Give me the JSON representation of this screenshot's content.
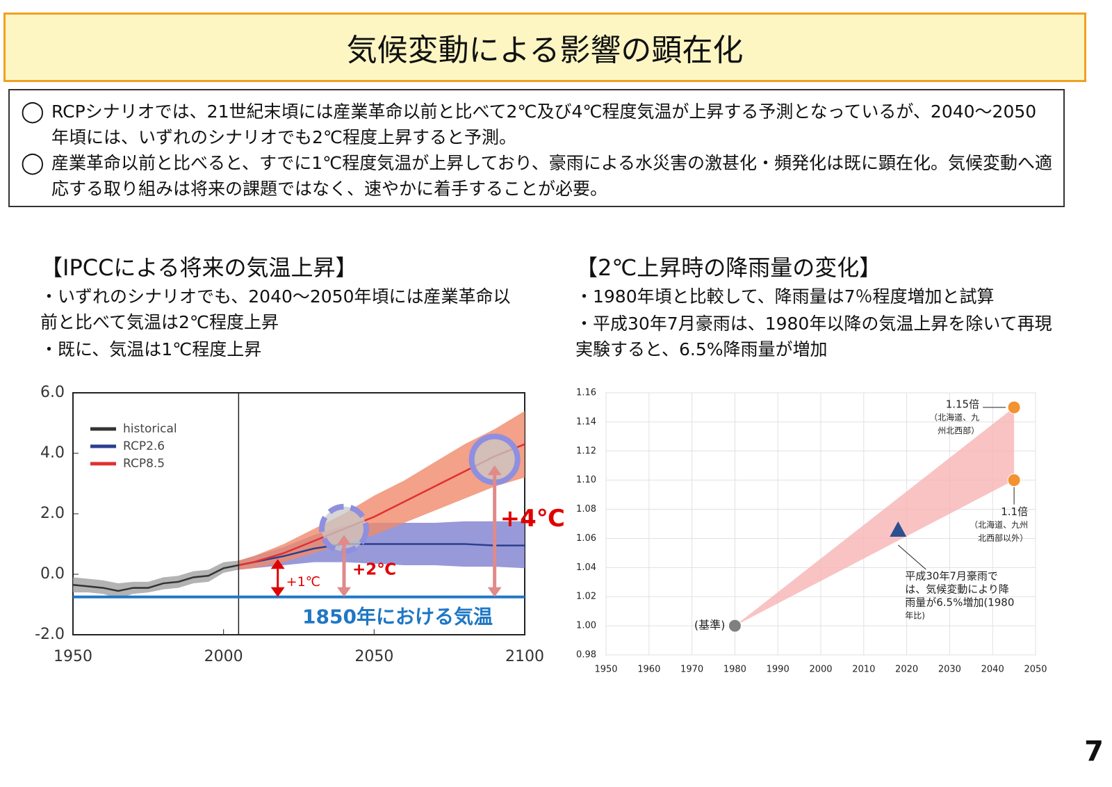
{
  "title": "気候変動による影響の顕在化",
  "bullets": [
    "RCPシナリオでは、21世紀末頃には産業革命以前と比べて2℃及び4℃程度気温が上昇する予測となっているが、2040～2050年頃には、いずれのシナリオでも2℃程度上昇すると予測。",
    "産業革命以前と比べると、すでに1℃程度気温が上昇しており、豪雨による水災害の激甚化・頻発化は既に顕在化。気候変動へ適応する取り組みは将来の課題ではなく、速やかに着手することが必要。"
  ],
  "panels": [
    {
      "heading": "【IPCCによる将来の気温上昇】",
      "notes": [
        "・いずれのシナリオでも、2040～2050年頃には産業革命以前と比べて気温は2℃程度上昇",
        "・既に、気温は1℃程度上昇"
      ]
    },
    {
      "heading": "【2℃上昇時の降雨量の変化】",
      "notes": [
        "・1980年頃と比較して、降雨量は7％程度増加と試算",
        "・平成30年7月豪雨は、1980年以降の気温上昇を除いて再現実験すると、6.5%降雨量が増加"
      ]
    }
  ],
  "page_number": 7,
  "chart_data": [
    {
      "type": "line",
      "xlim": [
        1950,
        2100
      ],
      "xticks": [
        1950,
        2000,
        2050,
        2100
      ],
      "ylim": [
        -2,
        6
      ],
      "yticks": [
        {
          "value": -2,
          "label": "-2.0"
        },
        {
          "value": 0,
          "label": "0.0"
        },
        {
          "value": 2,
          "label": "2.0"
        },
        {
          "value": 4,
          "label": "4.0"
        },
        {
          "value": 6,
          "label": "6.0"
        }
      ],
      "vline": 2005,
      "series": [
        {
          "name": "historical",
          "color": "#333333",
          "band_color": "#a0a0a0",
          "x": [
            1950,
            1955,
            1960,
            1965,
            1970,
            1975,
            1980,
            1985,
            1990,
            1995,
            2000,
            2005
          ],
          "values": [
            -0.35,
            -0.4,
            -0.45,
            -0.55,
            -0.45,
            -0.45,
            -0.3,
            -0.25,
            -0.1,
            -0.05,
            0.2,
            0.3
          ],
          "lower": [
            -0.6,
            -0.6,
            -0.65,
            -0.8,
            -0.65,
            -0.6,
            -0.5,
            -0.45,
            -0.3,
            -0.25,
            0.05,
            0.15
          ],
          "upper": [
            -0.1,
            -0.15,
            -0.2,
            -0.3,
            -0.25,
            -0.25,
            -0.1,
            -0.05,
            0.1,
            0.15,
            0.4,
            0.45
          ]
        },
        {
          "name": "RCP2.6",
          "color": "#2b3f8f",
          "band_color": "#7e7fd0",
          "x": [
            2005,
            2010,
            2020,
            2030,
            2040,
            2050,
            2060,
            2070,
            2080,
            2090,
            2100
          ],
          "values": [
            0.3,
            0.4,
            0.6,
            0.85,
            1.0,
            1.0,
            1.0,
            1.0,
            1.0,
            0.95,
            0.95
          ],
          "lower": [
            0.15,
            0.2,
            0.3,
            0.4,
            0.4,
            0.35,
            0.3,
            0.3,
            0.25,
            0.25,
            0.2
          ],
          "upper": [
            0.45,
            0.6,
            0.9,
            1.3,
            1.6,
            1.7,
            1.7,
            1.7,
            1.75,
            1.75,
            1.75
          ]
        },
        {
          "name": "RCP8.5",
          "color": "#e03030",
          "band_color": "#f08a6a",
          "x": [
            2005,
            2010,
            2020,
            2030,
            2040,
            2050,
            2060,
            2070,
            2080,
            2090,
            2100
          ],
          "values": [
            0.3,
            0.4,
            0.7,
            1.1,
            1.5,
            1.9,
            2.4,
            2.9,
            3.4,
            3.9,
            4.3
          ],
          "lower": [
            0.15,
            0.2,
            0.4,
            0.7,
            1.0,
            1.3,
            1.7,
            2.1,
            2.5,
            2.9,
            3.2
          ],
          "upper": [
            0.45,
            0.6,
            1.0,
            1.5,
            2.0,
            2.6,
            3.1,
            3.7,
            4.3,
            4.8,
            5.4
          ]
        }
      ],
      "reference_line": {
        "label": "1850年における気温",
        "value": -0.75,
        "color": "#1f77c4"
      },
      "highlights": [
        {
          "x": 2040,
          "y": 1.5,
          "dashed": true
        },
        {
          "x": 2090,
          "y": 3.8,
          "dashed": false
        }
      ],
      "annotations": [
        {
          "text": "+1℃",
          "x": 2018,
          "from": -0.75,
          "to": 0.5,
          "color": "#e00000",
          "label_color": "#e00000"
        },
        {
          "text": "+2℃",
          "x": 2040,
          "from": -0.75,
          "to": 1.3,
          "color": "#e08a8a",
          "label_color": "#e00000"
        },
        {
          "text": "+4℃",
          "x": 2090,
          "from": -0.75,
          "to": 3.6,
          "color": "#e08a8a",
          "label_color": "#e00000"
        }
      ]
    },
    {
      "type": "scatter",
      "xlim": [
        1950,
        2050
      ],
      "xticks": [
        1950,
        1960,
        1970,
        1980,
        1990,
        2000,
        2010,
        2020,
        2030,
        2040,
        2050
      ],
      "ylim": [
        0.98,
        1.16
      ],
      "yticks": [
        0.98,
        {
          "value": 1,
          "label": "1.00"
        },
        1.02,
        1.04,
        1.06,
        1.08,
        {
          "value": 1.1,
          "label": "1.10"
        },
        1.12,
        1.14,
        1.16
      ],
      "grid": true,
      "range_area": {
        "color": "#f8b4b4",
        "x": [
          1980,
          2045,
          2045
        ],
        "y": [
          1,
          1.15,
          1.1
        ]
      },
      "points": [
        {
          "x": 1980,
          "y": 1,
          "color": "#808080",
          "marker": "circle",
          "label": [
            "(基準)"
          ]
        },
        {
          "x": 2018,
          "y": 1.065,
          "color": "#2b4f8f",
          "marker": "triangle",
          "label": [
            "平成30年7月豪雨で",
            "は、気候変動により降",
            "雨量が6.5%増加(1980",
            "年比)"
          ]
        },
        {
          "x": 2045,
          "y": 1.15,
          "color": "#f29230",
          "marker": "circle",
          "label": [
            "1.15倍",
            "（北海道、九",
            "州北西部）"
          ]
        },
        {
          "x": 2045,
          "y": 1.1,
          "color": "#f29230",
          "marker": "circle",
          "label": [
            "1.1倍",
            "（北海道、九州",
            "北西部以外）"
          ]
        }
      ]
    }
  ]
}
